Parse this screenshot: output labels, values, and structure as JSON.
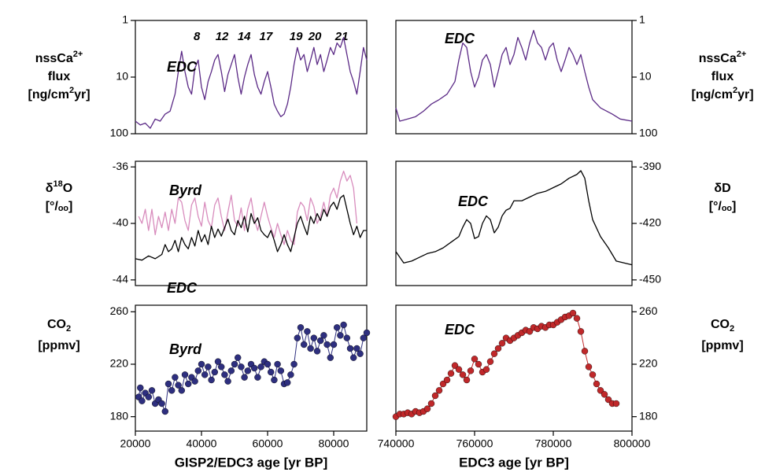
{
  "chart_data": [
    {
      "type": "line",
      "log_y": true,
      "ylabel": [
        [
          "nssCa",
          {
            "sup": "2+"
          }
        ],
        [
          "flux"
        ],
        [
          "[ng/cm",
          {
            "sup": "2"
          },
          "yr]"
        ]
      ],
      "xlim": [
        20000,
        90000
      ],
      "ylim": [
        100,
        1
      ],
      "yticks": [
        1,
        10,
        100
      ],
      "annotations": [
        {
          "text": "8",
          "x": 38600
        },
        {
          "text": "12",
          "x": 46200
        },
        {
          "text": "14",
          "x": 52900
        },
        {
          "text": "17",
          "x": 59500
        },
        {
          "text": "19",
          "x": 68600
        },
        {
          "text": "20",
          "x": 74300
        },
        {
          "text": "21",
          "x": 82400
        }
      ],
      "series": [
        {
          "name": "EDC",
          "color": "#5b2a86",
          "x": [
            20000,
            21500,
            23000,
            24500,
            26000,
            27500,
            29000,
            30500,
            32000,
            33000,
            34000,
            35000,
            36000,
            37000,
            38000,
            39000,
            40000,
            41000,
            42000,
            43000,
            44000,
            45000,
            46000,
            47000,
            48000,
            49000,
            50000,
            51000,
            52000,
            53000,
            54000,
            55000,
            56000,
            57000,
            58000,
            59000,
            60000,
            61000,
            62000,
            63000,
            64000,
            65000,
            66000,
            67000,
            68000,
            69000,
            70000,
            71000,
            72000,
            73000,
            74000,
            75000,
            76000,
            77000,
            78000,
            79000,
            80000,
            81000,
            82000,
            83000,
            84000,
            85000,
            86000,
            87000,
            88000,
            89000,
            90000
          ],
          "values": [
            60,
            70,
            65,
            80,
            55,
            60,
            45,
            40,
            20,
            8,
            3.5,
            8,
            15,
            20,
            7,
            5,
            15,
            25,
            12,
            8,
            5,
            4,
            8,
            18,
            9,
            6,
            4,
            10,
            20,
            10,
            6,
            4,
            9,
            15,
            20,
            12,
            8,
            15,
            30,
            40,
            50,
            45,
            30,
            15,
            6,
            3,
            5,
            4,
            8,
            5,
            3,
            6,
            4,
            8,
            5,
            3,
            4,
            2.5,
            3,
            2,
            4,
            8,
            12,
            20,
            8,
            3,
            5
          ]
        }
      ]
    },
    {
      "type": "line",
      "log_y": true,
      "ylabel": [
        [
          "nssCa",
          {
            "sup": "2+"
          }
        ],
        [
          "flux"
        ],
        [
          "[ng/cm",
          {
            "sup": "2"
          },
          "yr]"
        ]
      ],
      "xlim": [
        740000,
        800000
      ],
      "ylim": [
        100,
        1
      ],
      "yticks": [
        1,
        10,
        100
      ],
      "series": [
        {
          "name": "EDC",
          "color": "#5b2a86",
          "x": [
            740000,
            741000,
            743000,
            745000,
            747000,
            749000,
            751000,
            753000,
            755000,
            756000,
            757000,
            758000,
            759000,
            760000,
            761000,
            762000,
            763000,
            764000,
            765000,
            766000,
            767000,
            768000,
            769000,
            770000,
            771000,
            772000,
            773000,
            774000,
            775000,
            776000,
            777000,
            778000,
            779000,
            780000,
            781000,
            782000,
            783000,
            784000,
            785000,
            786000,
            787000,
            788000,
            789000,
            790000,
            792000,
            795000,
            797000,
            800000
          ],
          "values": [
            35,
            60,
            55,
            50,
            40,
            30,
            25,
            20,
            12,
            5,
            2.5,
            3,
            8,
            15,
            10,
            5,
            4,
            6,
            15,
            8,
            4,
            3,
            6,
            4,
            2,
            3,
            5,
            2.5,
            1.5,
            2.5,
            3,
            5,
            3,
            2.5,
            5,
            8,
            5,
            3,
            4,
            6,
            4,
            8,
            15,
            25,
            35,
            45,
            55,
            60
          ]
        }
      ]
    },
    {
      "type": "line",
      "ylabel": [
        [
          "δ",
          {
            "sup": "18"
          },
          "O"
        ],
        [
          "[°/ₒₒ]"
        ]
      ],
      "xlim": [
        20000,
        90000
      ],
      "ylim": [
        -44.4,
        -35.6
      ],
      "yticks": [
        -36,
        -40,
        -44
      ],
      "series": [
        {
          "name": "Byrd",
          "color": "#d88cbd",
          "x": [
            21000,
            22000,
            23000,
            24000,
            25000,
            26000,
            27000,
            28000,
            29000,
            30000,
            31000,
            32000,
            33000,
            34000,
            35000,
            36000,
            37000,
            38000,
            39000,
            40000,
            41000,
            42000,
            43000,
            44000,
            45000,
            46000,
            47000,
            48000,
            49000,
            50000,
            51000,
            52000,
            53000,
            54000,
            55000,
            56000,
            57000,
            58000,
            59000,
            60000,
            61000,
            62000,
            63000,
            64000,
            65000,
            66000,
            67000,
            68000,
            69000,
            70000,
            71000,
            72000,
            73000,
            74000,
            75000,
            76000,
            77000,
            78000,
            79000,
            80000,
            81000,
            82000,
            83000,
            84000,
            85000,
            86000,
            87000
          ],
          "values": [
            -39.5,
            -40,
            -39,
            -40.5,
            -39,
            -40.8,
            -39.5,
            -40.3,
            -39.2,
            -40.5,
            -39,
            -40,
            -38.2,
            -38.5,
            -39.8,
            -40.5,
            -38.7,
            -38.2,
            -39.5,
            -40.2,
            -38.5,
            -39.8,
            -40.3,
            -38.7,
            -38.2,
            -39.5,
            -40.5,
            -39.2,
            -38.0,
            -39.8,
            -40.2,
            -38.9,
            -40.5,
            -39.0,
            -38.2,
            -39.7,
            -40.5,
            -39.5,
            -38.5,
            -39.5,
            -40.3,
            -41,
            -40,
            -40.8,
            -41.5,
            -40.5,
            -41.2,
            -41.5,
            -39.2,
            -38.5,
            -38.8,
            -39.8,
            -38.2,
            -38.8,
            -40,
            -39.5,
            -38.5,
            -39.5,
            -38,
            -37.5,
            -38.2,
            -37,
            -36.3,
            -37,
            -36.6,
            -37.5,
            -40
          ]
        },
        {
          "name": "EDC",
          "color": "#000000",
          "x": [
            20000,
            22000,
            24000,
            26000,
            28000,
            29000,
            30000,
            31000,
            32000,
            33000,
            34000,
            35000,
            36000,
            37000,
            38000,
            39000,
            40000,
            41000,
            42000,
            43000,
            44000,
            45000,
            46000,
            47000,
            48000,
            49000,
            50000,
            51000,
            52000,
            53000,
            54000,
            55000,
            56000,
            57000,
            58000,
            59000,
            60000,
            61000,
            62000,
            63000,
            64000,
            65000,
            66000,
            67000,
            68000,
            69000,
            70000,
            71000,
            72000,
            73000,
            74000,
            75000,
            76000,
            77000,
            78000,
            79000,
            80000,
            81000,
            82000,
            83000,
            84000,
            85000,
            86000,
            87000,
            88000,
            89000,
            90000
          ],
          "values": [
            -42.5,
            -42.6,
            -42.3,
            -42.5,
            -42.2,
            -41.5,
            -42,
            -41.8,
            -41.2,
            -42,
            -41,
            -41.5,
            -41.8,
            -41,
            -41.6,
            -40.5,
            -41.3,
            -40.8,
            -41.5,
            -40.2,
            -41,
            -40.4,
            -40.9,
            -40.3,
            -39.7,
            -40.5,
            -40.8,
            -39.8,
            -40.3,
            -39.5,
            -40.6,
            -39.3,
            -40,
            -39.6,
            -40.5,
            -40.8,
            -41,
            -40.5,
            -41.2,
            -42,
            -41.5,
            -40.8,
            -41.5,
            -42,
            -41,
            -40,
            -39.5,
            -40.2,
            -40.8,
            -39.5,
            -40,
            -39.3,
            -39.8,
            -39,
            -39.5,
            -38.8,
            -38.5,
            -39,
            -38.2,
            -38,
            -39,
            -40,
            -40.8,
            -40.2,
            -41,
            -40.5,
            -40.5
          ]
        }
      ]
    },
    {
      "type": "line",
      "ylabel": [
        [
          "δD"
        ],
        [
          "[°/ₒₒ]"
        ]
      ],
      "xlim": [
        740000,
        800000
      ],
      "ylim": [
        -453,
        -387
      ],
      "yticks": [
        -390,
        -420,
        -450
      ],
      "series": [
        {
          "name": "EDC",
          "color": "#000000",
          "x": [
            740000,
            742000,
            744000,
            746000,
            748000,
            750000,
            752000,
            754000,
            756000,
            757000,
            758000,
            759000,
            760000,
            761000,
            762000,
            763000,
            764000,
            765000,
            766000,
            767000,
            768000,
            769000,
            770000,
            772000,
            774000,
            776000,
            778000,
            780000,
            782000,
            784000,
            786000,
            787000,
            788000,
            789000,
            790000,
            792000,
            794000,
            796000,
            798000,
            800000
          ],
          "values": [
            -435,
            -441,
            -440,
            -438,
            -436,
            -435,
            -433,
            -430,
            -427,
            -422,
            -418,
            -420,
            -428,
            -427,
            -420,
            -416,
            -418,
            -425,
            -422,
            -416,
            -413,
            -412,
            -408,
            -408,
            -406,
            -404,
            -403,
            -401,
            -399,
            -396,
            -394,
            -392,
            -396,
            -408,
            -418,
            -427,
            -433,
            -440,
            -441,
            -442
          ]
        }
      ]
    },
    {
      "type": "line",
      "ylabel": [
        [
          "CO",
          {
            "sub": "2"
          }
        ],
        [
          "[ppmv]"
        ]
      ],
      "xlabel": "GISP2/EDC3 age [yr BP]",
      "xlim": [
        20000,
        90000
      ],
      "xticks": [
        20000,
        40000,
        60000,
        80000
      ],
      "ylim": [
        169,
        265
      ],
      "yticks": [
        260,
        220,
        180
      ],
      "series": [
        {
          "name": "Byrd",
          "color": "#2e2f7f",
          "markers": true,
          "x": [
            21000,
            21500,
            22000,
            23000,
            24000,
            25000,
            26000,
            27000,
            28000,
            29000,
            30000,
            31000,
            32000,
            33000,
            34000,
            35000,
            36000,
            37000,
            38000,
            39000,
            40000,
            41000,
            42000,
            43000,
            44000,
            45000,
            46000,
            47000,
            48000,
            49000,
            50000,
            51000,
            52000,
            53000,
            54000,
            55000,
            56000,
            57000,
            58000,
            59000,
            60000,
            61000,
            62000,
            63000,
            64000,
            65000,
            66000,
            67000,
            68000,
            69000,
            70000,
            71000,
            72000,
            73000,
            74000,
            75000,
            76000,
            77000,
            78000,
            79000,
            80000,
            81000,
            82000,
            83000,
            84000,
            85000,
            86000,
            87000,
            88000,
            89000,
            90000
          ],
          "values": [
            195,
            202,
            192,
            198,
            195,
            200,
            190,
            193,
            190,
            184,
            205,
            200,
            210,
            204,
            200,
            212,
            205,
            210,
            207,
            215,
            220,
            212,
            218,
            208,
            214,
            222,
            218,
            212,
            207,
            215,
            220,
            225,
            218,
            210,
            215,
            220,
            217,
            210,
            218,
            222,
            220,
            214,
            208,
            220,
            215,
            205,
            206,
            212,
            220,
            240,
            248,
            235,
            245,
            232,
            240,
            230,
            238,
            242,
            235,
            225,
            235,
            248,
            242,
            250,
            240,
            232,
            225,
            232,
            228,
            240,
            244
          ]
        }
      ]
    },
    {
      "type": "line",
      "ylabel": [
        [
          "CO",
          {
            "sub": "2"
          }
        ],
        [
          "[ppmv]"
        ]
      ],
      "xlabel": "EDC3 age  [yr BP]",
      "xlim": [
        740000,
        800000
      ],
      "xticks": [
        740000,
        760000,
        780000,
        800000
      ],
      "ylim": [
        169,
        265
      ],
      "yticks": [
        260,
        220,
        180
      ],
      "series": [
        {
          "name": "EDC",
          "color": "#c0282a",
          "markers": true,
          "x": [
            740000,
            741000,
            742000,
            743000,
            744000,
            745000,
            746000,
            747000,
            748000,
            749000,
            750000,
            751000,
            752000,
            753000,
            754000,
            755000,
            756000,
            757000,
            758000,
            759000,
            760000,
            761000,
            762000,
            763000,
            764000,
            765000,
            766000,
            767000,
            768000,
            769000,
            770000,
            771000,
            772000,
            773000,
            774000,
            775000,
            776000,
            777000,
            778000,
            779000,
            780000,
            781000,
            782000,
            783000,
            784000,
            785000,
            786000,
            787000,
            788000,
            789000,
            790000,
            791000,
            792000,
            793000,
            794000,
            795000,
            796000
          ],
          "values": [
            180,
            182,
            182,
            183,
            182,
            184,
            183,
            184,
            186,
            190,
            196,
            200,
            205,
            208,
            213,
            219,
            216,
            212,
            208,
            215,
            224,
            220,
            214,
            216,
            222,
            228,
            232,
            236,
            240,
            238,
            240,
            242,
            244,
            246,
            245,
            248,
            247,
            249,
            248,
            250,
            250,
            252,
            254,
            256,
            257,
            259,
            255,
            245,
            230,
            218,
            212,
            205,
            200,
            197,
            193,
            190,
            190
          ]
        }
      ]
    }
  ]
}
